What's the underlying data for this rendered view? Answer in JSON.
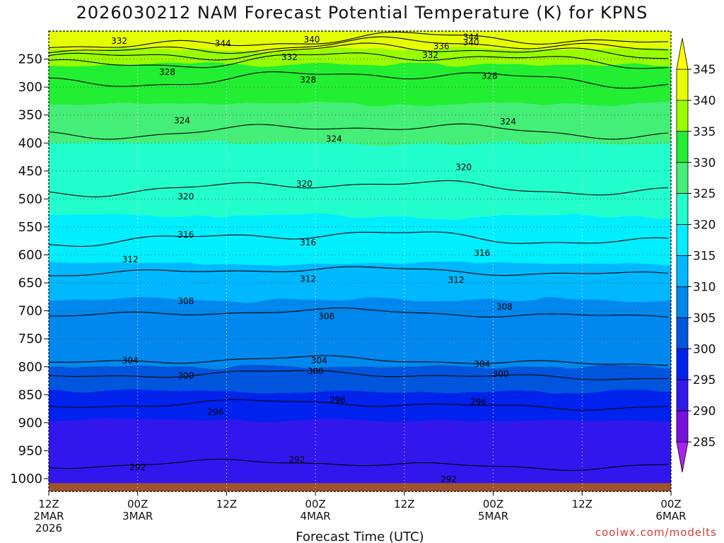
{
  "chart_data": {
    "type": "heatmap",
    "title": "2026030212 NAM Forecast Potential Temperature (K) for KPNS",
    "xlabel": "Forecast Time (UTC)",
    "ylabel": "",
    "credit": "coolwx.com/modelts",
    "x_ticks": [
      {
        "hour": 0,
        "lines": [
          "12Z",
          "2MAR",
          "2026"
        ]
      },
      {
        "hour": 12,
        "lines": [
          "00Z",
          "3MAR"
        ]
      },
      {
        "hour": 24,
        "lines": [
          "12Z"
        ]
      },
      {
        "hour": 36,
        "lines": [
          "00Z",
          "4MAR"
        ]
      },
      {
        "hour": 48,
        "lines": [
          "12Z"
        ]
      },
      {
        "hour": 60,
        "lines": [
          "00Z",
          "5MAR"
        ]
      },
      {
        "hour": 72,
        "lines": [
          "12Z"
        ]
      },
      {
        "hour": 84,
        "lines": [
          "00Z",
          "6MAR"
        ]
      }
    ],
    "xlim": [
      0,
      84
    ],
    "y_ticks": [
      250,
      300,
      350,
      400,
      450,
      500,
      550,
      600,
      650,
      700,
      750,
      800,
      850,
      900,
      950,
      1000
    ],
    "ylim": [
      1020,
      200
    ],
    "grid": true,
    "colorbar": {
      "ticks": [
        345,
        340,
        335,
        330,
        325,
        320,
        315,
        310,
        305,
        300,
        295,
        290,
        285
      ],
      "bands": [
        {
          "lo": 340,
          "hi": 345,
          "color": "#e6ff00"
        },
        {
          "lo": 335,
          "hi": 340,
          "color": "#99ff00"
        },
        {
          "lo": 330,
          "hi": 335,
          "color": "#22ee33"
        },
        {
          "lo": 325,
          "hi": 330,
          "color": "#44ee77"
        },
        {
          "lo": 320,
          "hi": 325,
          "color": "#22ffcc"
        },
        {
          "lo": 315,
          "hi": 320,
          "color": "#00eeff"
        },
        {
          "lo": 310,
          "hi": 315,
          "color": "#00b8ff"
        },
        {
          "lo": 305,
          "hi": 310,
          "color": "#0088ee"
        },
        {
          "lo": 300,
          "hi": 305,
          "color": "#0055dd"
        },
        {
          "lo": 295,
          "hi": 300,
          "color": "#0022ee"
        },
        {
          "lo": 290,
          "hi": 295,
          "color": "#3318ee"
        },
        {
          "lo": 285,
          "hi": 290,
          "color": "#7711dd"
        }
      ],
      "top_color": "#ffff00",
      "bottom_color": "#aa22ee"
    },
    "ground_color": "#a0522d",
    "isotherm_pressures": [
      {
        "theta": 344,
        "p": 218
      },
      {
        "theta": 340,
        "p": 228
      },
      {
        "theta": 336,
        "p": 238
      },
      {
        "theta": 332,
        "p": 252
      },
      {
        "theta": 328,
        "p": 285
      },
      {
        "theta": 324,
        "p": 378
      },
      {
        "theta": 320,
        "p": 480
      },
      {
        "theta": 316,
        "p": 570
      },
      {
        "theta": 312,
        "p": 630
      },
      {
        "theta": 308,
        "p": 705
      },
      {
        "theta": 304,
        "p": 790
      },
      {
        "theta": 300,
        "p": 815
      },
      {
        "theta": 296,
        "p": 868
      },
      {
        "theta": 292,
        "p": 975
      }
    ],
    "contour_labels": [
      {
        "text": "332",
        "hour": 9.5,
        "p": 218
      },
      {
        "text": "344",
        "hour": 23.5,
        "p": 222
      },
      {
        "text": "340",
        "hour": 35.5,
        "p": 215
      },
      {
        "text": "344",
        "hour": 57,
        "p": 211
      },
      {
        "text": "340",
        "hour": 57,
        "p": 220
      },
      {
        "text": "336",
        "hour": 53,
        "p": 227
      },
      {
        "text": "332",
        "hour": 32.5,
        "p": 247
      },
      {
        "text": "332",
        "hour": 51.5,
        "p": 243
      },
      {
        "text": "328",
        "hour": 16,
        "p": 273
      },
      {
        "text": "328",
        "hour": 35,
        "p": 287
      },
      {
        "text": "328",
        "hour": 59.5,
        "p": 280
      },
      {
        "text": "324",
        "hour": 18,
        "p": 360
      },
      {
        "text": "324",
        "hour": 38.5,
        "p": 393
      },
      {
        "text": "324",
        "hour": 62,
        "p": 362
      },
      {
        "text": "320",
        "hour": 18.5,
        "p": 496
      },
      {
        "text": "320",
        "hour": 34.5,
        "p": 473
      },
      {
        "text": "320",
        "hour": 56,
        "p": 443
      },
      {
        "text": "316",
        "hour": 18.5,
        "p": 564
      },
      {
        "text": "316",
        "hour": 35,
        "p": 578
      },
      {
        "text": "316",
        "hour": 58.5,
        "p": 597
      },
      {
        "text": "312",
        "hour": 11,
        "p": 608
      },
      {
        "text": "312",
        "hour": 35,
        "p": 643
      },
      {
        "text": "312",
        "hour": 55,
        "p": 645
      },
      {
        "text": "308",
        "hour": 18.5,
        "p": 683
      },
      {
        "text": "308",
        "hour": 37.5,
        "p": 710
      },
      {
        "text": "308",
        "hour": 61.5,
        "p": 693
      },
      {
        "text": "304",
        "hour": 11,
        "p": 789
      },
      {
        "text": "304",
        "hour": 36.5,
        "p": 789
      },
      {
        "text": "304",
        "hour": 58.5,
        "p": 795
      },
      {
        "text": "300",
        "hour": 18.5,
        "p": 816
      },
      {
        "text": "300",
        "hour": 36,
        "p": 808
      },
      {
        "text": "300",
        "hour": 61,
        "p": 813
      },
      {
        "text": "296",
        "hour": 22.5,
        "p": 881
      },
      {
        "text": "296",
        "hour": 39,
        "p": 860
      },
      {
        "text": "296",
        "hour": 58,
        "p": 863
      },
      {
        "text": "292",
        "hour": 12,
        "p": 980
      },
      {
        "text": "292",
        "hour": 33.5,
        "p": 966
      },
      {
        "text": "292",
        "hour": 54,
        "p": 1001
      }
    ]
  }
}
